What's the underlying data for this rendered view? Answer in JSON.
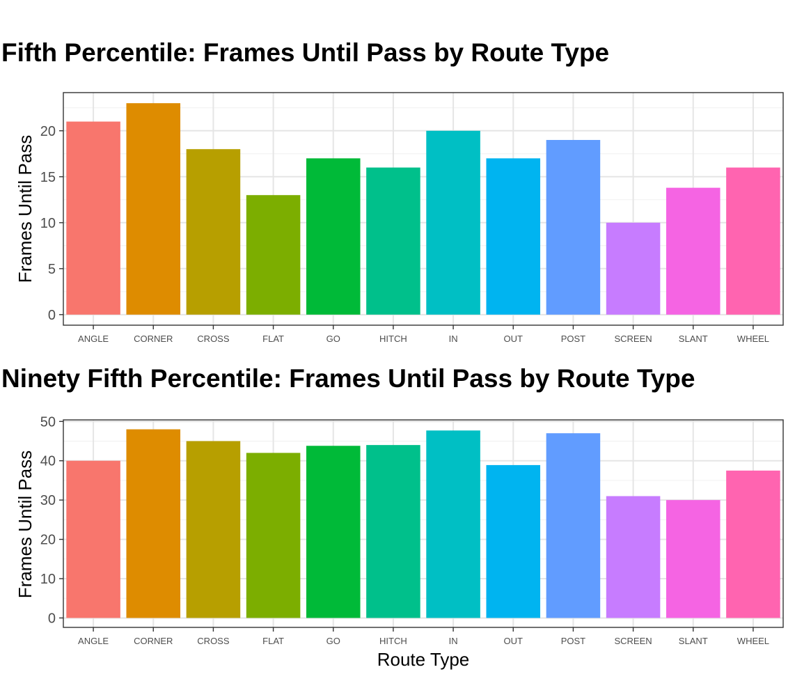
{
  "chart_data": [
    {
      "type": "bar",
      "title": "Fifth Percentile: Frames Until Pass by Route Type",
      "xlabel": "",
      "ylabel": "Frames Until Pass",
      "categories": [
        "ANGLE",
        "CORNER",
        "CROSS",
        "FLAT",
        "GO",
        "HITCH",
        "IN",
        "OUT",
        "POST",
        "SCREEN",
        "SLANT",
        "WHEEL"
      ],
      "values": [
        21,
        23,
        18,
        13,
        17,
        16,
        20,
        17,
        19,
        10,
        13.8,
        16
      ],
      "colors": [
        "#F8766D",
        "#DE8C00",
        "#B79F00",
        "#7CAE00",
        "#00BA38",
        "#00C08B",
        "#00BFC4",
        "#00B4F0",
        "#619CFF",
        "#C77CFF",
        "#F564E3",
        "#FF64B0"
      ],
      "yticks": [
        0,
        5,
        10,
        15,
        20
      ],
      "ylim": [
        -1.15,
        24.15
      ],
      "grid": true,
      "legend": "none"
    },
    {
      "type": "bar",
      "title": "Ninety Fifth Percentile: Frames Until Pass by Route Type",
      "xlabel": "Route Type",
      "ylabel": "Frames Until Pass",
      "categories": [
        "ANGLE",
        "CORNER",
        "CROSS",
        "FLAT",
        "GO",
        "HITCH",
        "IN",
        "OUT",
        "POST",
        "SCREEN",
        "SLANT",
        "WHEEL"
      ],
      "values": [
        40,
        48,
        45,
        42,
        43.8,
        44,
        47.7,
        38.9,
        47,
        31,
        30,
        37.5
      ],
      "colors": [
        "#F8766D",
        "#DE8C00",
        "#B79F00",
        "#7CAE00",
        "#00BA38",
        "#00C08B",
        "#00BFC4",
        "#00B4F0",
        "#619CFF",
        "#C77CFF",
        "#F564E3",
        "#FF64B0"
      ],
      "yticks": [
        0,
        10,
        20,
        30,
        40,
        50
      ],
      "ylim": [
        -2.4,
        50.4
      ],
      "grid": true,
      "legend": "none"
    }
  ]
}
